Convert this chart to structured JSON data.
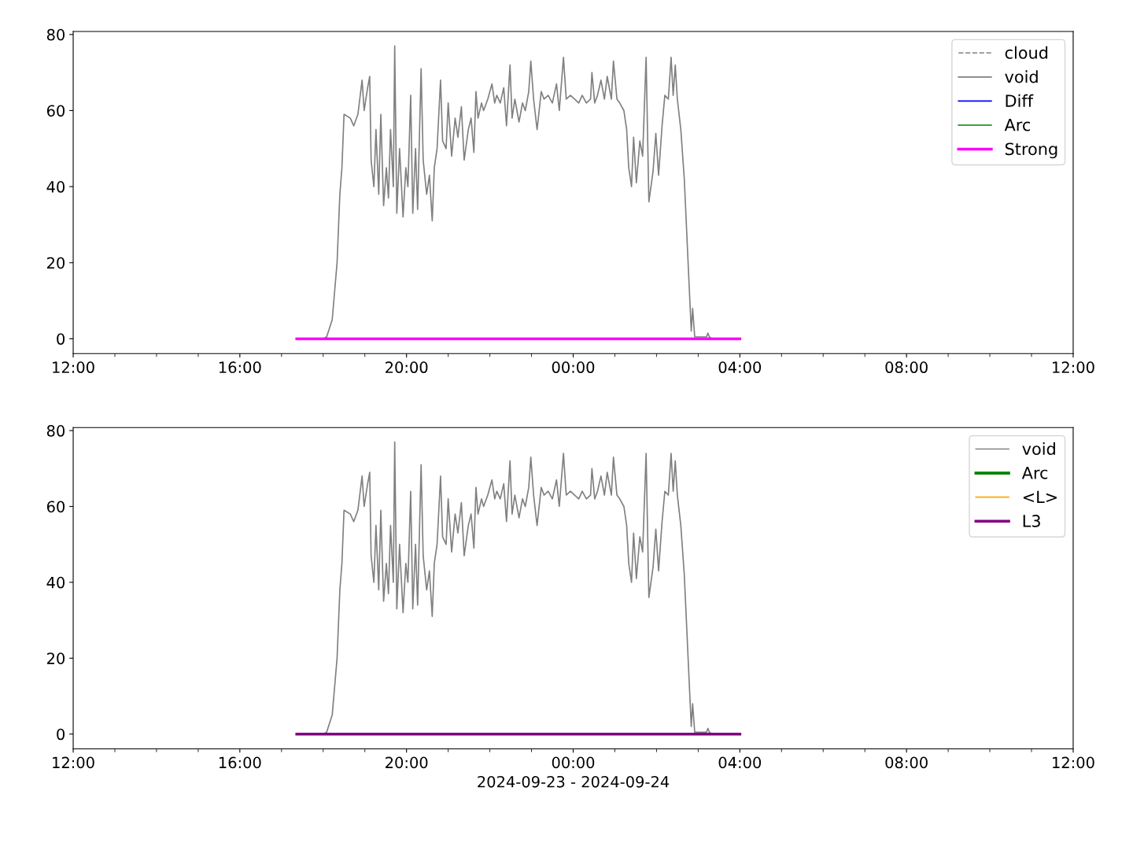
{
  "chart_data": [
    {
      "type": "line",
      "ylim": [
        -3.9,
        80.8
      ],
      "yticks": [
        0,
        20,
        40,
        60,
        80
      ],
      "xlim": [
        "2024-09-23T12:00",
        "2024-09-24T12:00"
      ],
      "xticks": [
        {
          "value": "2024-09-23T12:00",
          "label": "12:00"
        },
        {
          "value": "2024-09-23T16:00",
          "label": "16:00"
        },
        {
          "value": "2024-09-23T20:00",
          "label": "20:00"
        },
        {
          "value": "2024-09-24T00:00",
          "label": "00:00"
        },
        {
          "value": "2024-09-24T04:00",
          "label": "04:00"
        },
        {
          "value": "2024-09-24T08:00",
          "label": "08:00"
        },
        {
          "value": "2024-09-24T12:00",
          "label": "12:00"
        }
      ],
      "grid": false,
      "legend": "top right",
      "series": [
        {
          "name": "cloud",
          "color": "#808080",
          "line_style": "dashed"
        },
        {
          "name": "void",
          "color": "#808080",
          "line_style": "solid",
          "x": [
            "2024-09-23T18:00",
            "2024-09-23T18:05",
            "2024-09-23T18:13",
            "2024-09-23T18:20",
            "2024-09-23T18:24",
            "2024-09-23T18:27",
            "2024-09-23T18:30",
            "2024-09-23T18:39",
            "2024-09-23T18:44",
            "2024-09-23T18:50",
            "2024-09-23T18:56",
            "2024-09-23T18:59",
            "2024-09-23T19:04",
            "2024-09-23T19:07",
            "2024-09-23T19:09",
            "2024-09-23T19:13",
            "2024-09-23T19:16",
            "2024-09-23T19:20",
            "2024-09-23T19:23",
            "2024-09-23T19:27",
            "2024-09-23T19:31",
            "2024-09-23T19:34",
            "2024-09-23T19:37",
            "2024-09-23T19:41",
            "2024-09-23T19:43",
            "2024-09-23T19:46",
            "2024-09-23T19:50",
            "2024-09-23T19:55",
            "2024-09-23T19:59",
            "2024-09-23T20:02",
            "2024-09-23T20:06",
            "2024-09-23T20:09",
            "2024-09-23T20:13",
            "2024-09-23T20:16",
            "2024-09-23T20:21",
            "2024-09-23T20:24",
            "2024-09-23T20:29",
            "2024-09-23T20:33",
            "2024-09-23T20:37",
            "2024-09-23T20:40",
            "2024-09-23T20:44",
            "2024-09-23T20:49",
            "2024-09-23T20:52",
            "2024-09-23T20:57",
            "2024-09-23T21:00",
            "2024-09-23T21:05",
            "2024-09-23T21:10",
            "2024-09-23T21:14",
            "2024-09-23T21:19",
            "2024-09-23T21:23",
            "2024-09-23T21:29",
            "2024-09-23T21:33",
            "2024-09-23T21:37",
            "2024-09-23T21:40",
            "2024-09-23T21:43",
            "2024-09-23T21:48",
            "2024-09-23T21:51",
            "2024-09-23T21:57",
            "2024-09-23T22:03",
            "2024-09-23T22:07",
            "2024-09-23T22:10",
            "2024-09-23T22:15",
            "2024-09-23T22:20",
            "2024-09-23T22:24",
            "2024-09-23T22:29",
            "2024-09-23T22:32",
            "2024-09-23T22:36",
            "2024-09-23T22:42",
            "2024-09-23T22:47",
            "2024-09-23T22:51",
            "2024-09-23T22:56",
            "2024-09-23T22:59",
            "2024-09-23T23:03",
            "2024-09-23T23:08",
            "2024-09-23T23:14",
            "2024-09-23T23:18",
            "2024-09-23T23:24",
            "2024-09-23T23:30",
            "2024-09-23T23:36",
            "2024-09-23T23:40",
            "2024-09-23T23:46",
            "2024-09-23T23:50",
            "2024-09-23T23:56",
            "2024-09-24T00:02",
            "2024-09-24T00:08",
            "2024-09-24T00:13",
            "2024-09-24T00:19",
            "2024-09-24T00:25",
            "2024-09-24T00:27",
            "2024-09-24T00:31",
            "2024-09-24T00:35",
            "2024-09-24T00:40",
            "2024-09-24T00:45",
            "2024-09-24T00:49",
            "2024-09-24T00:55",
            "2024-09-24T00:58",
            "2024-09-24T01:03",
            "2024-09-24T01:07",
            "2024-09-24T01:13",
            "2024-09-24T01:17",
            "2024-09-24T01:20",
            "2024-09-24T01:24",
            "2024-09-24T01:27",
            "2024-09-24T01:31",
            "2024-09-24T01:36",
            "2024-09-24T01:40",
            "2024-09-24T01:45",
            "2024-09-24T01:49",
            "2024-09-24T01:55",
            "2024-09-24T01:59",
            "2024-09-24T02:03",
            "2024-09-24T02:08",
            "2024-09-24T02:12",
            "2024-09-24T02:17",
            "2024-09-24T02:21",
            "2024-09-24T02:24",
            "2024-09-24T02:27",
            "2024-09-24T02:30",
            "2024-09-24T02:35",
            "2024-09-24T02:40",
            "2024-09-24T02:43",
            "2024-09-24T02:46",
            "2024-09-24T02:50",
            "2024-09-24T02:52",
            "2024-09-24T02:55",
            "2024-09-24T03:12",
            "2024-09-24T03:14",
            "2024-09-24T03:16",
            "2024-09-24T03:20"
          ],
          "values": [
            0,
            0.5,
            5,
            20,
            38,
            45,
            59,
            58,
            56,
            59,
            68,
            60,
            66,
            69,
            47,
            40,
            55,
            38,
            59,
            35,
            45,
            37,
            55,
            40,
            77,
            33,
            50,
            32,
            45,
            40,
            64,
            33,
            50,
            34,
            71,
            47,
            38,
            43,
            31,
            45,
            50,
            68,
            52,
            50,
            62,
            48,
            58,
            53,
            61,
            47,
            55,
            58,
            49,
            65,
            58,
            62,
            60,
            63,
            67,
            62,
            64,
            62,
            66,
            56,
            72,
            58,
            63,
            57,
            62,
            60,
            65,
            73,
            63,
            55,
            65,
            63,
            64,
            62,
            67,
            60,
            74,
            63,
            64,
            63,
            62,
            64,
            62,
            63,
            70,
            62,
            64,
            68,
            63,
            69,
            63,
            73,
            63,
            62,
            60,
            55,
            45,
            40,
            53,
            41,
            52,
            48,
            74,
            36,
            44,
            54,
            43,
            56,
            64,
            63,
            74,
            64,
            72,
            63,
            55,
            42,
            30,
            18,
            2,
            8,
            0.5,
            0.5,
            1.5,
            0.5,
            0
          ]
        },
        {
          "name": "Diff",
          "color": "#0000ff",
          "line_style": "solid"
        },
        {
          "name": "Arc",
          "color": "#008000",
          "line_style": "solid"
        },
        {
          "name": "Strong",
          "color": "#ff00ff",
          "line_style": "solid",
          "x": [
            "2024-09-23T17:22",
            "2024-09-24T04:00"
          ],
          "values": [
            0,
            0
          ]
        }
      ]
    },
    {
      "type": "line",
      "ylim": [
        -3.9,
        80.8
      ],
      "yticks": [
        0,
        20,
        40,
        60,
        80
      ],
      "xlim": [
        "2024-09-23T12:00",
        "2024-09-24T12:00"
      ],
      "xticks": [
        {
          "value": "2024-09-23T12:00",
          "label": "12:00"
        },
        {
          "value": "2024-09-23T16:00",
          "label": "16:00"
        },
        {
          "value": "2024-09-23T20:00",
          "label": "20:00"
        },
        {
          "value": "2024-09-24T00:00",
          "label": "00:00"
        },
        {
          "value": "2024-09-24T04:00",
          "label": "04:00"
        },
        {
          "value": "2024-09-24T08:00",
          "label": "08:00"
        },
        {
          "value": "2024-09-24T12:00",
          "label": "12:00"
        }
      ],
      "xlabel": "2024-09-23 - 2024-09-24",
      "grid": false,
      "legend": "top right",
      "series": [
        {
          "name": "void",
          "color": "#808080",
          "line_style": "solid",
          "x": [
            "2024-09-23T18:00",
            "2024-09-23T18:05",
            "2024-09-23T18:13",
            "2024-09-23T18:20",
            "2024-09-23T18:24",
            "2024-09-23T18:27",
            "2024-09-23T18:30",
            "2024-09-23T18:39",
            "2024-09-23T18:44",
            "2024-09-23T18:50",
            "2024-09-23T18:56",
            "2024-09-23T18:59",
            "2024-09-23T19:04",
            "2024-09-23T19:07",
            "2024-09-23T19:09",
            "2024-09-23T19:13",
            "2024-09-23T19:16",
            "2024-09-23T19:20",
            "2024-09-23T19:23",
            "2024-09-23T19:27",
            "2024-09-23T19:31",
            "2024-09-23T19:34",
            "2024-09-23T19:37",
            "2024-09-23T19:41",
            "2024-09-23T19:43",
            "2024-09-23T19:46",
            "2024-09-23T19:50",
            "2024-09-23T19:55",
            "2024-09-23T19:59",
            "2024-09-23T20:02",
            "2024-09-23T20:06",
            "2024-09-23T20:09",
            "2024-09-23T20:13",
            "2024-09-23T20:16",
            "2024-09-23T20:21",
            "2024-09-23T20:24",
            "2024-09-23T20:29",
            "2024-09-23T20:33",
            "2024-09-23T20:37",
            "2024-09-23T20:40",
            "2024-09-23T20:44",
            "2024-09-23T20:49",
            "2024-09-23T20:52",
            "2024-09-23T20:57",
            "2024-09-23T21:00",
            "2024-09-23T21:05",
            "2024-09-23T21:10",
            "2024-09-23T21:14",
            "2024-09-23T21:19",
            "2024-09-23T21:23",
            "2024-09-23T21:29",
            "2024-09-23T21:33",
            "2024-09-23T21:37",
            "2024-09-23T21:40",
            "2024-09-23T21:43",
            "2024-09-23T21:48",
            "2024-09-23T21:51",
            "2024-09-23T21:57",
            "2024-09-23T22:03",
            "2024-09-23T22:07",
            "2024-09-23T22:10",
            "2024-09-23T22:15",
            "2024-09-23T22:20",
            "2024-09-23T22:24",
            "2024-09-23T22:29",
            "2024-09-23T22:32",
            "2024-09-23T22:36",
            "2024-09-23T22:42",
            "2024-09-23T22:47",
            "2024-09-23T22:51",
            "2024-09-23T22:56",
            "2024-09-23T22:59",
            "2024-09-23T23:03",
            "2024-09-23T23:08",
            "2024-09-23T23:14",
            "2024-09-23T23:18",
            "2024-09-23T23:24",
            "2024-09-23T23:30",
            "2024-09-23T23:36",
            "2024-09-23T23:40",
            "2024-09-23T23:46",
            "2024-09-23T23:50",
            "2024-09-23T23:56",
            "2024-09-24T00:02",
            "2024-09-24T00:08",
            "2024-09-24T00:13",
            "2024-09-24T00:19",
            "2024-09-24T00:25",
            "2024-09-24T00:27",
            "2024-09-24T00:31",
            "2024-09-24T00:35",
            "2024-09-24T00:40",
            "2024-09-24T00:45",
            "2024-09-24T00:49",
            "2024-09-24T00:55",
            "2024-09-24T00:58",
            "2024-09-24T01:03",
            "2024-09-24T01:07",
            "2024-09-24T01:13",
            "2024-09-24T01:17",
            "2024-09-24T01:20",
            "2024-09-24T01:24",
            "2024-09-24T01:27",
            "2024-09-24T01:31",
            "2024-09-24T01:36",
            "2024-09-24T01:40",
            "2024-09-24T01:45",
            "2024-09-24T01:49",
            "2024-09-24T01:55",
            "2024-09-24T01:59",
            "2024-09-24T02:03",
            "2024-09-24T02:08",
            "2024-09-24T02:12",
            "2024-09-24T02:17",
            "2024-09-24T02:21",
            "2024-09-24T02:24",
            "2024-09-24T02:27",
            "2024-09-24T02:30",
            "2024-09-24T02:35",
            "2024-09-24T02:40",
            "2024-09-24T02:43",
            "2024-09-24T02:46",
            "2024-09-24T02:50",
            "2024-09-24T02:52",
            "2024-09-24T02:55",
            "2024-09-24T03:12",
            "2024-09-24T03:14",
            "2024-09-24T03:16",
            "2024-09-24T03:20"
          ],
          "values": [
            0,
            0.5,
            5,
            20,
            38,
            45,
            59,
            58,
            56,
            59,
            68,
            60,
            66,
            69,
            47,
            40,
            55,
            38,
            59,
            35,
            45,
            37,
            55,
            40,
            77,
            33,
            50,
            32,
            45,
            40,
            64,
            33,
            50,
            34,
            71,
            47,
            38,
            43,
            31,
            45,
            50,
            68,
            52,
            50,
            62,
            48,
            58,
            53,
            61,
            47,
            55,
            58,
            49,
            65,
            58,
            62,
            60,
            63,
            67,
            62,
            64,
            62,
            66,
            56,
            72,
            58,
            63,
            57,
            62,
            60,
            65,
            73,
            63,
            55,
            65,
            63,
            64,
            62,
            67,
            60,
            74,
            63,
            64,
            63,
            62,
            64,
            62,
            63,
            70,
            62,
            64,
            68,
            63,
            69,
            63,
            73,
            63,
            62,
            60,
            55,
            45,
            40,
            53,
            41,
            52,
            48,
            74,
            36,
            44,
            54,
            43,
            56,
            64,
            63,
            74,
            64,
            72,
            63,
            55,
            42,
            30,
            18,
            2,
            8,
            0.5,
            0.5,
            1.5,
            0.5,
            0
          ]
        },
        {
          "name": "Arc",
          "color": "#008000",
          "line_style": "solid"
        },
        {
          "name": "<L>",
          "color": "#ffa500",
          "line_style": "solid"
        },
        {
          "name": "L3",
          "color": "#800080",
          "line_style": "solid",
          "x": [
            "2024-09-23T17:22",
            "2024-09-24T04:00"
          ],
          "values": [
            0,
            0
          ]
        }
      ]
    }
  ]
}
